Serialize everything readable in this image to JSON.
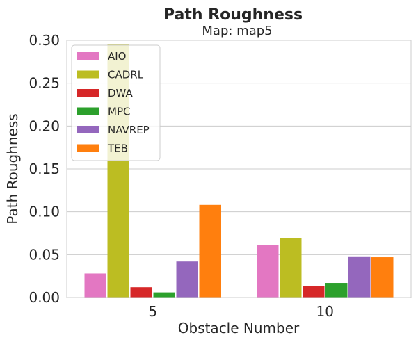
{
  "chart_data": {
    "type": "bar",
    "title": "Path Roughness",
    "subtitle": "Map: map5",
    "xlabel": "Obstacle Number",
    "ylabel": "Path Roughness",
    "categories": [
      "5",
      "10"
    ],
    "ylim": [
      0,
      0.3
    ],
    "yticks": [
      "0.00",
      "0.05",
      "0.10",
      "0.15",
      "0.20",
      "0.25",
      "0.30"
    ],
    "ytick_values": [
      0,
      0.05,
      0.1,
      0.15,
      0.2,
      0.25,
      0.3
    ],
    "grid": true,
    "legend_position": "top-left",
    "series": [
      {
        "name": "AIO",
        "color": "#e377c2",
        "values": [
          0.028,
          0.061
        ]
      },
      {
        "name": "CADRL",
        "color": "#bcbd22",
        "values": [
          0.295,
          0.069
        ]
      },
      {
        "name": "DWA",
        "color": "#d62728",
        "values": [
          0.012,
          0.013
        ]
      },
      {
        "name": "MPC",
        "color": "#2ca02c",
        "values": [
          0.006,
          0.017
        ]
      },
      {
        "name": "NAVREP",
        "color": "#9467bd",
        "values": [
          0.042,
          0.048
        ]
      },
      {
        "name": "TEB",
        "color": "#ff7f0e",
        "values": [
          0.108,
          0.047
        ]
      }
    ]
  }
}
